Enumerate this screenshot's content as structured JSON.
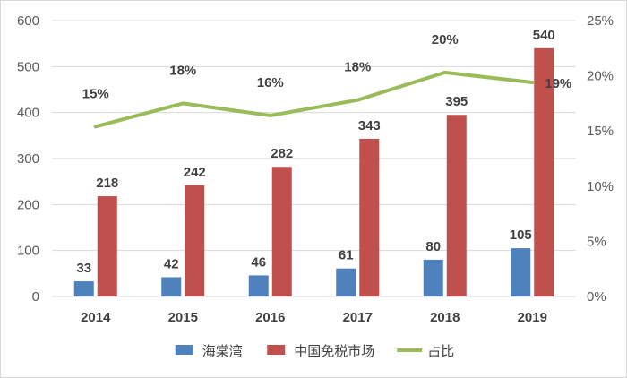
{
  "chart_data": {
    "type": "bar",
    "categories": [
      "2014",
      "2015",
      "2016",
      "2017",
      "2018",
      "2019"
    ],
    "series": [
      {
        "name": "海棠湾",
        "type": "bar",
        "axis": "left",
        "color": "#4f81bd",
        "values": [
          33,
          42,
          46,
          61,
          80,
          105
        ],
        "labels": [
          "33",
          "42",
          "46",
          "61",
          "80",
          "105"
        ]
      },
      {
        "name": "中国免税市场",
        "type": "bar",
        "axis": "left",
        "color": "#c0504d",
        "values": [
          218,
          242,
          282,
          343,
          395,
          540
        ],
        "labels": [
          "218",
          "242",
          "282",
          "343",
          "395",
          "540"
        ]
      },
      {
        "name": "占比",
        "type": "line",
        "axis": "right",
        "color": "#9bbb59",
        "values": [
          15.4,
          17.5,
          16.4,
          17.8,
          20.3,
          19.4
        ],
        "labels": [
          "15%",
          "18%",
          "16%",
          "18%",
          "20%",
          "19%"
        ]
      }
    ],
    "ylim": [
      0,
      600
    ],
    "yticks": [
      "0",
      "100",
      "200",
      "300",
      "400",
      "500",
      "600"
    ],
    "y2lim": [
      0,
      25
    ],
    "y2ticks": [
      "0%",
      "5%",
      "10%",
      "15%",
      "20%",
      "25%"
    ],
    "grid": true,
    "legend_position": "bottom"
  }
}
